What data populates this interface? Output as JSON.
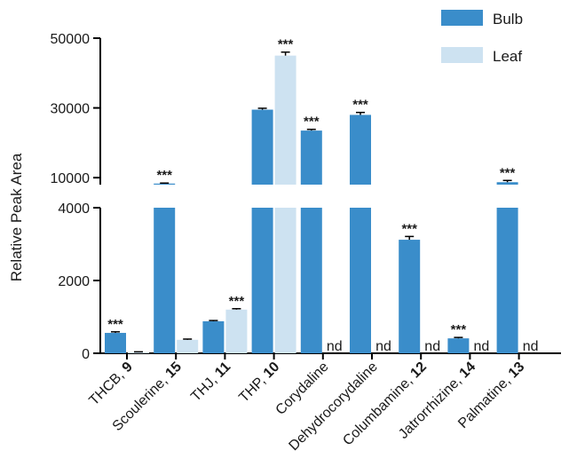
{
  "chart_data": {
    "type": "bar",
    "ylabel": "Relative Peak Area",
    "xlabel": "",
    "title": "",
    "legend_position": "top-right",
    "axis_break": true,
    "upper_segment": {
      "ylim": [
        8000,
        50000
      ],
      "ticks": [
        50000,
        30000,
        10000
      ]
    },
    "lower_segment": {
      "ylim": [
        0,
        4000
      ],
      "ticks": [
        4000,
        2000,
        0
      ]
    },
    "categories": [
      {
        "name": "THCB, ",
        "num": "9"
      },
      {
        "name": "Scoulerine, ",
        "num": "15"
      },
      {
        "name": "THJ, ",
        "num": "11"
      },
      {
        "name": "THP, ",
        "num": "10"
      },
      {
        "name": "Corydaline",
        "num": ""
      },
      {
        "name": "Dehydrocorydaline",
        "num": ""
      },
      {
        "name": "Columbamine, ",
        "num": "12"
      },
      {
        "name": "Jatrorrhizine, ",
        "num": "14"
      },
      {
        "name": "Palmatine, ",
        "num": "13"
      }
    ],
    "series": [
      {
        "name": "Bulb",
        "color": "#3a8dca",
        "values": [
          560,
          8300,
          880,
          29500,
          23500,
          28000,
          3120,
          410,
          8700
        ],
        "errors": [
          30,
          150,
          20,
          400,
          350,
          700,
          90,
          25,
          500
        ],
        "annotations": [
          "***",
          "***",
          "",
          "",
          "***",
          "***",
          "***",
          "***",
          "***"
        ]
      },
      {
        "name": "Leaf",
        "color": "#cde2f1",
        "values": [
          30,
          370,
          1200,
          45000,
          null,
          null,
          null,
          null,
          null
        ],
        "errors": [
          10,
          20,
          25,
          1000,
          null,
          null,
          null,
          null,
          null
        ],
        "annotations": [
          "",
          "",
          "***",
          "***",
          "nd",
          "nd",
          "nd",
          "nd",
          "nd"
        ]
      }
    ],
    "not_detected_label": "nd"
  }
}
